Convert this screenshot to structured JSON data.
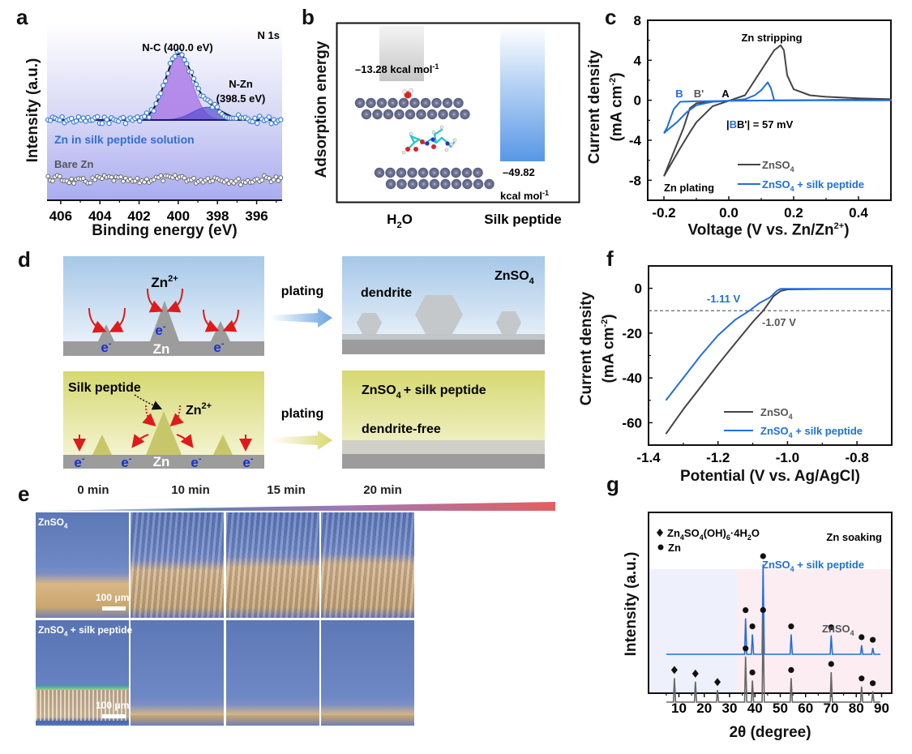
{
  "panels": {
    "a": {
      "letter": "a"
    },
    "b": {
      "letter": "b"
    },
    "c": {
      "letter": "c"
    },
    "d": {
      "letter": "d"
    },
    "e": {
      "letter": "e"
    },
    "f": {
      "letter": "f"
    },
    "g": {
      "letter": "g"
    }
  },
  "chart_data": [
    {
      "id": "a",
      "type": "scatter",
      "title": "N 1s",
      "xlabel": "Binding energy (eV)",
      "ylabel": "Intensity (a.u.)",
      "xlim": [
        406.7,
        394.7
      ],
      "x_reversed": true,
      "xticks": [
        "406",
        "404",
        "402",
        "400",
        "398",
        "396"
      ],
      "xtick_values": [
        406,
        404,
        402,
        400,
        398,
        396
      ],
      "grid": false,
      "annotations": {
        "nc": "N-C (400.0 eV)",
        "nzn": "N-Zn",
        "nzn_val": "(398.5 eV)",
        "solution": "Zn in silk peptide solution",
        "bare": "Bare Zn"
      },
      "series": [
        {
          "name": "Zn in silk peptide solution",
          "color": "#3a7fd6",
          "marker": "open-circle"
        },
        {
          "name": "Bare Zn",
          "color": "#777777",
          "marker": "open-circle"
        }
      ],
      "fit_peaks": [
        {
          "name": "N-C",
          "center_eV": 400.0,
          "fwhm_eV": 1.6,
          "rel_height": 1.0,
          "color": "#a56de6"
        },
        {
          "name": "N-Zn",
          "center_eV": 398.5,
          "fwhm_eV": 1.8,
          "rel_height": 0.2,
          "color": "#5a4fd0"
        }
      ]
    },
    {
      "id": "b",
      "type": "bar",
      "ylabel": "Adsorption energy",
      "categories": [
        "H2O",
        "Silk peptide"
      ],
      "category_labels": {
        "h2o_main": "H",
        "h2o_sub": "2",
        "h2o_tail": "O",
        "silk": "Silk peptide"
      },
      "values": [
        -13.28,
        -49.82
      ],
      "units": "kcal mol-1",
      "value_labels": {
        "h2o": "–13.28 kcal mol",
        "h2o_sup": "-1",
        "silk_val": "–49.82",
        "silk_unit": "kcal mol",
        "silk_sup": "-1"
      },
      "colors": [
        "#c8c8c8",
        "#5b9be6"
      ]
    },
    {
      "id": "c",
      "type": "line",
      "xlabel": "Voltage (V vs. Zn/Zn",
      "xlabel_sup": "2+",
      "xlabel_tail": ")",
      "ylabel_1": "Current density",
      "ylabel_2": "(mA cm",
      "ylabel_2_sup": "-2",
      "ylabel_2_tail": ")",
      "xlim": [
        -0.25,
        0.5
      ],
      "ylim": [
        -10,
        8
      ],
      "xticks": [
        "-0.2",
        "0.0",
        "0.2",
        "0.4"
      ],
      "xtick_values": [
        -0.2,
        0.0,
        0.2,
        0.4
      ],
      "yticks": [
        "8",
        "4",
        "0",
        "-4",
        "-8"
      ],
      "ytick_values": [
        8,
        4,
        0,
        -4,
        -8
      ],
      "annotations": {
        "stripping": "Zn stripping",
        "plating": "Zn plating",
        "B": "B",
        "Bp": "B'",
        "A": "A",
        "bb_open": "|",
        "bb_B": "B",
        "bb_rest": "B'| = 57 mV"
      },
      "series": [
        {
          "name": "ZnSO4",
          "legend_main": "ZnSO",
          "legend_sub": "4",
          "legend_tail": "",
          "color": "#444444",
          "x": [
            -0.2,
            -0.17,
            -0.14,
            -0.12,
            -0.1,
            -0.05,
            0.0,
            0.05,
            0.1,
            0.14,
            0.16,
            0.17,
            0.18,
            0.2,
            0.25,
            0.3,
            0.4,
            0.5,
            0.4,
            0.2,
            0.0,
            -0.05,
            -0.1,
            -0.12,
            -0.15,
            -0.2
          ],
          "y": [
            -7.6,
            -5.2,
            -2.8,
            -0.8,
            -0.3,
            -0.15,
            -0.05,
            0.5,
            3.0,
            5.0,
            5.5,
            5.0,
            2.5,
            1.1,
            0.5,
            0.35,
            0.2,
            0.1,
            0.05,
            0.0,
            -0.05,
            -0.6,
            -2.2,
            -3.2,
            -4.8,
            -7.6
          ]
        },
        {
          "name": "ZnSO4 + silk peptide",
          "legend_main": "ZnSO",
          "legend_sub": "4",
          "legend_tail": " + silk peptide",
          "color": "#1f6fe0",
          "x": [
            -0.2,
            -0.19,
            -0.17,
            -0.15,
            -0.1,
            -0.05,
            0.0,
            0.05,
            0.08,
            0.1,
            0.12,
            0.13,
            0.14,
            0.2,
            0.5,
            0.2,
            0.0,
            -0.05,
            -0.1,
            -0.13,
            -0.16,
            -0.19,
            -0.2
          ],
          "y": [
            -3.3,
            -2.7,
            -0.9,
            -0.15,
            -0.1,
            -0.08,
            -0.05,
            0.1,
            0.5,
            1.0,
            1.8,
            1.2,
            0.0,
            0.0,
            0.0,
            0.0,
            -0.05,
            -0.15,
            -0.5,
            -1.2,
            -2.2,
            -3.0,
            -3.3
          ]
        }
      ]
    },
    {
      "id": "d",
      "type": "diagram",
      "top": {
        "ion": "Zn",
        "ion_sup": "2+",
        "electron": "e",
        "electron_sup": "-",
        "substrate": "Zn",
        "arrow": "plating",
        "result_title_main": "ZnSO",
        "result_title_sub": "4",
        "result_label": "dendrite"
      },
      "bottom": {
        "additive": "Silk peptide",
        "ion": "Zn",
        "ion_sup": "2+",
        "electron": "e",
        "electron_sup": "-",
        "substrate": "Zn",
        "arrow": "plating",
        "result_title_main": "ZnSO",
        "result_title_sub": "4",
        "result_title_tail": "+ silk peptide",
        "result_label": "dendrite-free"
      }
    },
    {
      "id": "e",
      "type": "image-grid",
      "times": [
        "0 min",
        "10 min",
        "15 min",
        "20 min"
      ],
      "rows": [
        {
          "label_main": "ZnSO",
          "label_sub": "4",
          "label_tail": "",
          "scale": "100 μm"
        },
        {
          "label_main": "ZnSO",
          "label_sub": "4",
          "label_tail": " + silk peptide",
          "scale": "100 μm"
        }
      ]
    },
    {
      "id": "f",
      "type": "line",
      "xlabel": "Potential (V vs. Ag/AgCl)",
      "ylabel_1": "Current density",
      "ylabel_2": "(mA cm",
      "ylabel_2_sup": "-2",
      "ylabel_2_tail": ")",
      "xlim": [
        -1.4,
        -0.7
      ],
      "ylim": [
        -70,
        10
      ],
      "xticks": [
        "-1.4",
        "-1.2",
        "-1.0",
        "-0.8"
      ],
      "xtick_values": [
        -1.4,
        -1.2,
        -1.0,
        -0.8
      ],
      "yticks": [
        "0",
        "-20",
        "-40",
        "-60"
      ],
      "ytick_values": [
        0,
        -20,
        -40,
        -60
      ],
      "reference_line": -10,
      "annotations": {
        "silk_onset": "-1.11 V",
        "znso4_onset": "-1.07 V"
      },
      "series": [
        {
          "name": "ZnSO4",
          "legend_main": "ZnSO",
          "legend_sub": "4",
          "legend_tail": "",
          "color": "#444444",
          "x": [
            -1.35,
            -1.3,
            -1.25,
            -1.2,
            -1.15,
            -1.1,
            -1.07,
            -1.04,
            -1.02,
            -1.0,
            -0.9,
            -0.8,
            -0.7
          ],
          "y": [
            -65,
            -54,
            -44,
            -34,
            -24.5,
            -15,
            -10,
            -3.5,
            -1.2,
            -0.5,
            -0.3,
            -0.3,
            -0.3
          ]
        },
        {
          "name": "ZnSO4 + silk peptide",
          "legend_main": "ZnSO",
          "legend_sub": "4",
          "legend_tail": " + silk peptide",
          "color": "#1f6fe0",
          "x": [
            -1.35,
            -1.3,
            -1.25,
            -1.2,
            -1.15,
            -1.11,
            -1.08,
            -1.05,
            -1.03,
            -1.02,
            -1.0,
            -0.9,
            -0.8,
            -0.7
          ],
          "y": [
            -50,
            -40,
            -30,
            -21,
            -14,
            -10,
            -6.5,
            -4,
            -1,
            -0.2,
            -0.2,
            -0.2,
            -0.2,
            -0.2
          ]
        }
      ]
    },
    {
      "id": "g",
      "type": "line",
      "xlabel": "2θ (degree)",
      "ylabel": "Intensity (a.u.)",
      "xlim": [
        -2,
        94
      ],
      "xticks": [
        "10",
        "20",
        "30",
        "40",
        "50",
        "60",
        "70",
        "80",
        "90"
      ],
      "xtick_values": [
        10,
        20,
        30,
        40,
        50,
        60,
        70,
        80,
        90
      ],
      "title": "Zn soaking",
      "legend": [
        {
          "marker": "diamond",
          "main": "Zn",
          "sub1": "4",
          "mid1": "SO",
          "sub2": "4",
          "mid2": "(OH)",
          "sub3": "6",
          "mid3": "·4H",
          "sub4": "2",
          "tail": "O"
        },
        {
          "marker": "circle",
          "main": "Zn"
        }
      ],
      "series": [
        {
          "name": "ZnSO4 + silk peptide",
          "label_main": "ZnSO",
          "label_sub": "4",
          "label_tail": " + silk peptide",
          "color": "#1f6fe0",
          "peaks": [
            {
              "x": 36.3,
              "h": 0.4,
              "marker": "circle"
            },
            {
              "x": 39.0,
              "h": 0.22,
              "marker": "circle"
            },
            {
              "x": 43.2,
              "h": 1.0,
              "marker": "circle"
            },
            {
              "x": 54.3,
              "h": 0.22,
              "marker": "circle"
            },
            {
              "x": 70.1,
              "h": 0.21,
              "marker": "circle"
            },
            {
              "x": 82.1,
              "h": 0.1,
              "marker": "circle"
            },
            {
              "x": 86.5,
              "h": 0.07,
              "marker": "circle"
            }
          ]
        },
        {
          "name": "ZnSO4",
          "label_main": "ZnSO",
          "label_sub": "4",
          "label_tail": "",
          "color": "#666666",
          "peaks": [
            {
              "x": 8.2,
              "h": 0.2,
              "marker": "diamond"
            },
            {
              "x": 16.5,
              "h": 0.17,
              "marker": "diamond"
            },
            {
              "x": 25.2,
              "h": 0.1,
              "marker": "diamond"
            },
            {
              "x": 36.3,
              "h": 0.38,
              "marker": "circle"
            },
            {
              "x": 39.0,
              "h": 0.18,
              "marker": "circle"
            },
            {
              "x": 43.2,
              "h": 0.7,
              "marker": "circle"
            },
            {
              "x": 54.3,
              "h": 0.2,
              "marker": "circle"
            },
            {
              "x": 70.1,
              "h": 0.25,
              "marker": "circle"
            },
            {
              "x": 82.1,
              "h": 0.13,
              "marker": "circle"
            },
            {
              "x": 86.5,
              "h": 0.09,
              "marker": "circle"
            }
          ]
        }
      ]
    }
  ]
}
